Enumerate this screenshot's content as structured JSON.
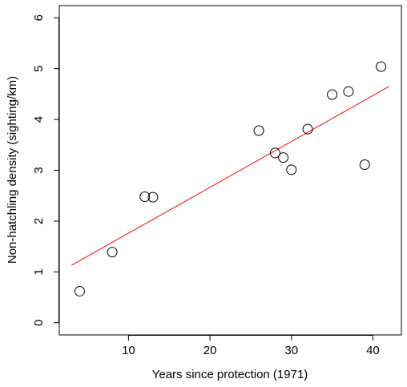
{
  "chart_data": {
    "type": "scatter",
    "title": "",
    "xlabel": "Years since protection (1971)",
    "ylabel": "Non-hatchling density (sighting/km)",
    "xlim": [
      1.5,
      43.5
    ],
    "ylim": [
      -0.24,
      6.24
    ],
    "xticks": [
      10,
      20,
      30,
      40
    ],
    "yticks": [
      0,
      1,
      2,
      3,
      4,
      5,
      6
    ],
    "grid": false,
    "legend": "none",
    "point_color": "#000000",
    "line_color": "#ff0000",
    "series": [
      {
        "x": [
          4,
          8,
          12,
          13,
          26,
          28,
          29,
          30,
          32,
          35,
          37,
          39,
          41
        ],
        "y": [
          0.62,
          1.39,
          2.48,
          2.47,
          3.78,
          3.34,
          3.25,
          3.01,
          3.81,
          4.49,
          4.55,
          3.11,
          5.04
        ]
      }
    ],
    "trend_line": {
      "x": [
        3,
        42
      ],
      "y": [
        1.13,
        4.65
      ]
    }
  }
}
